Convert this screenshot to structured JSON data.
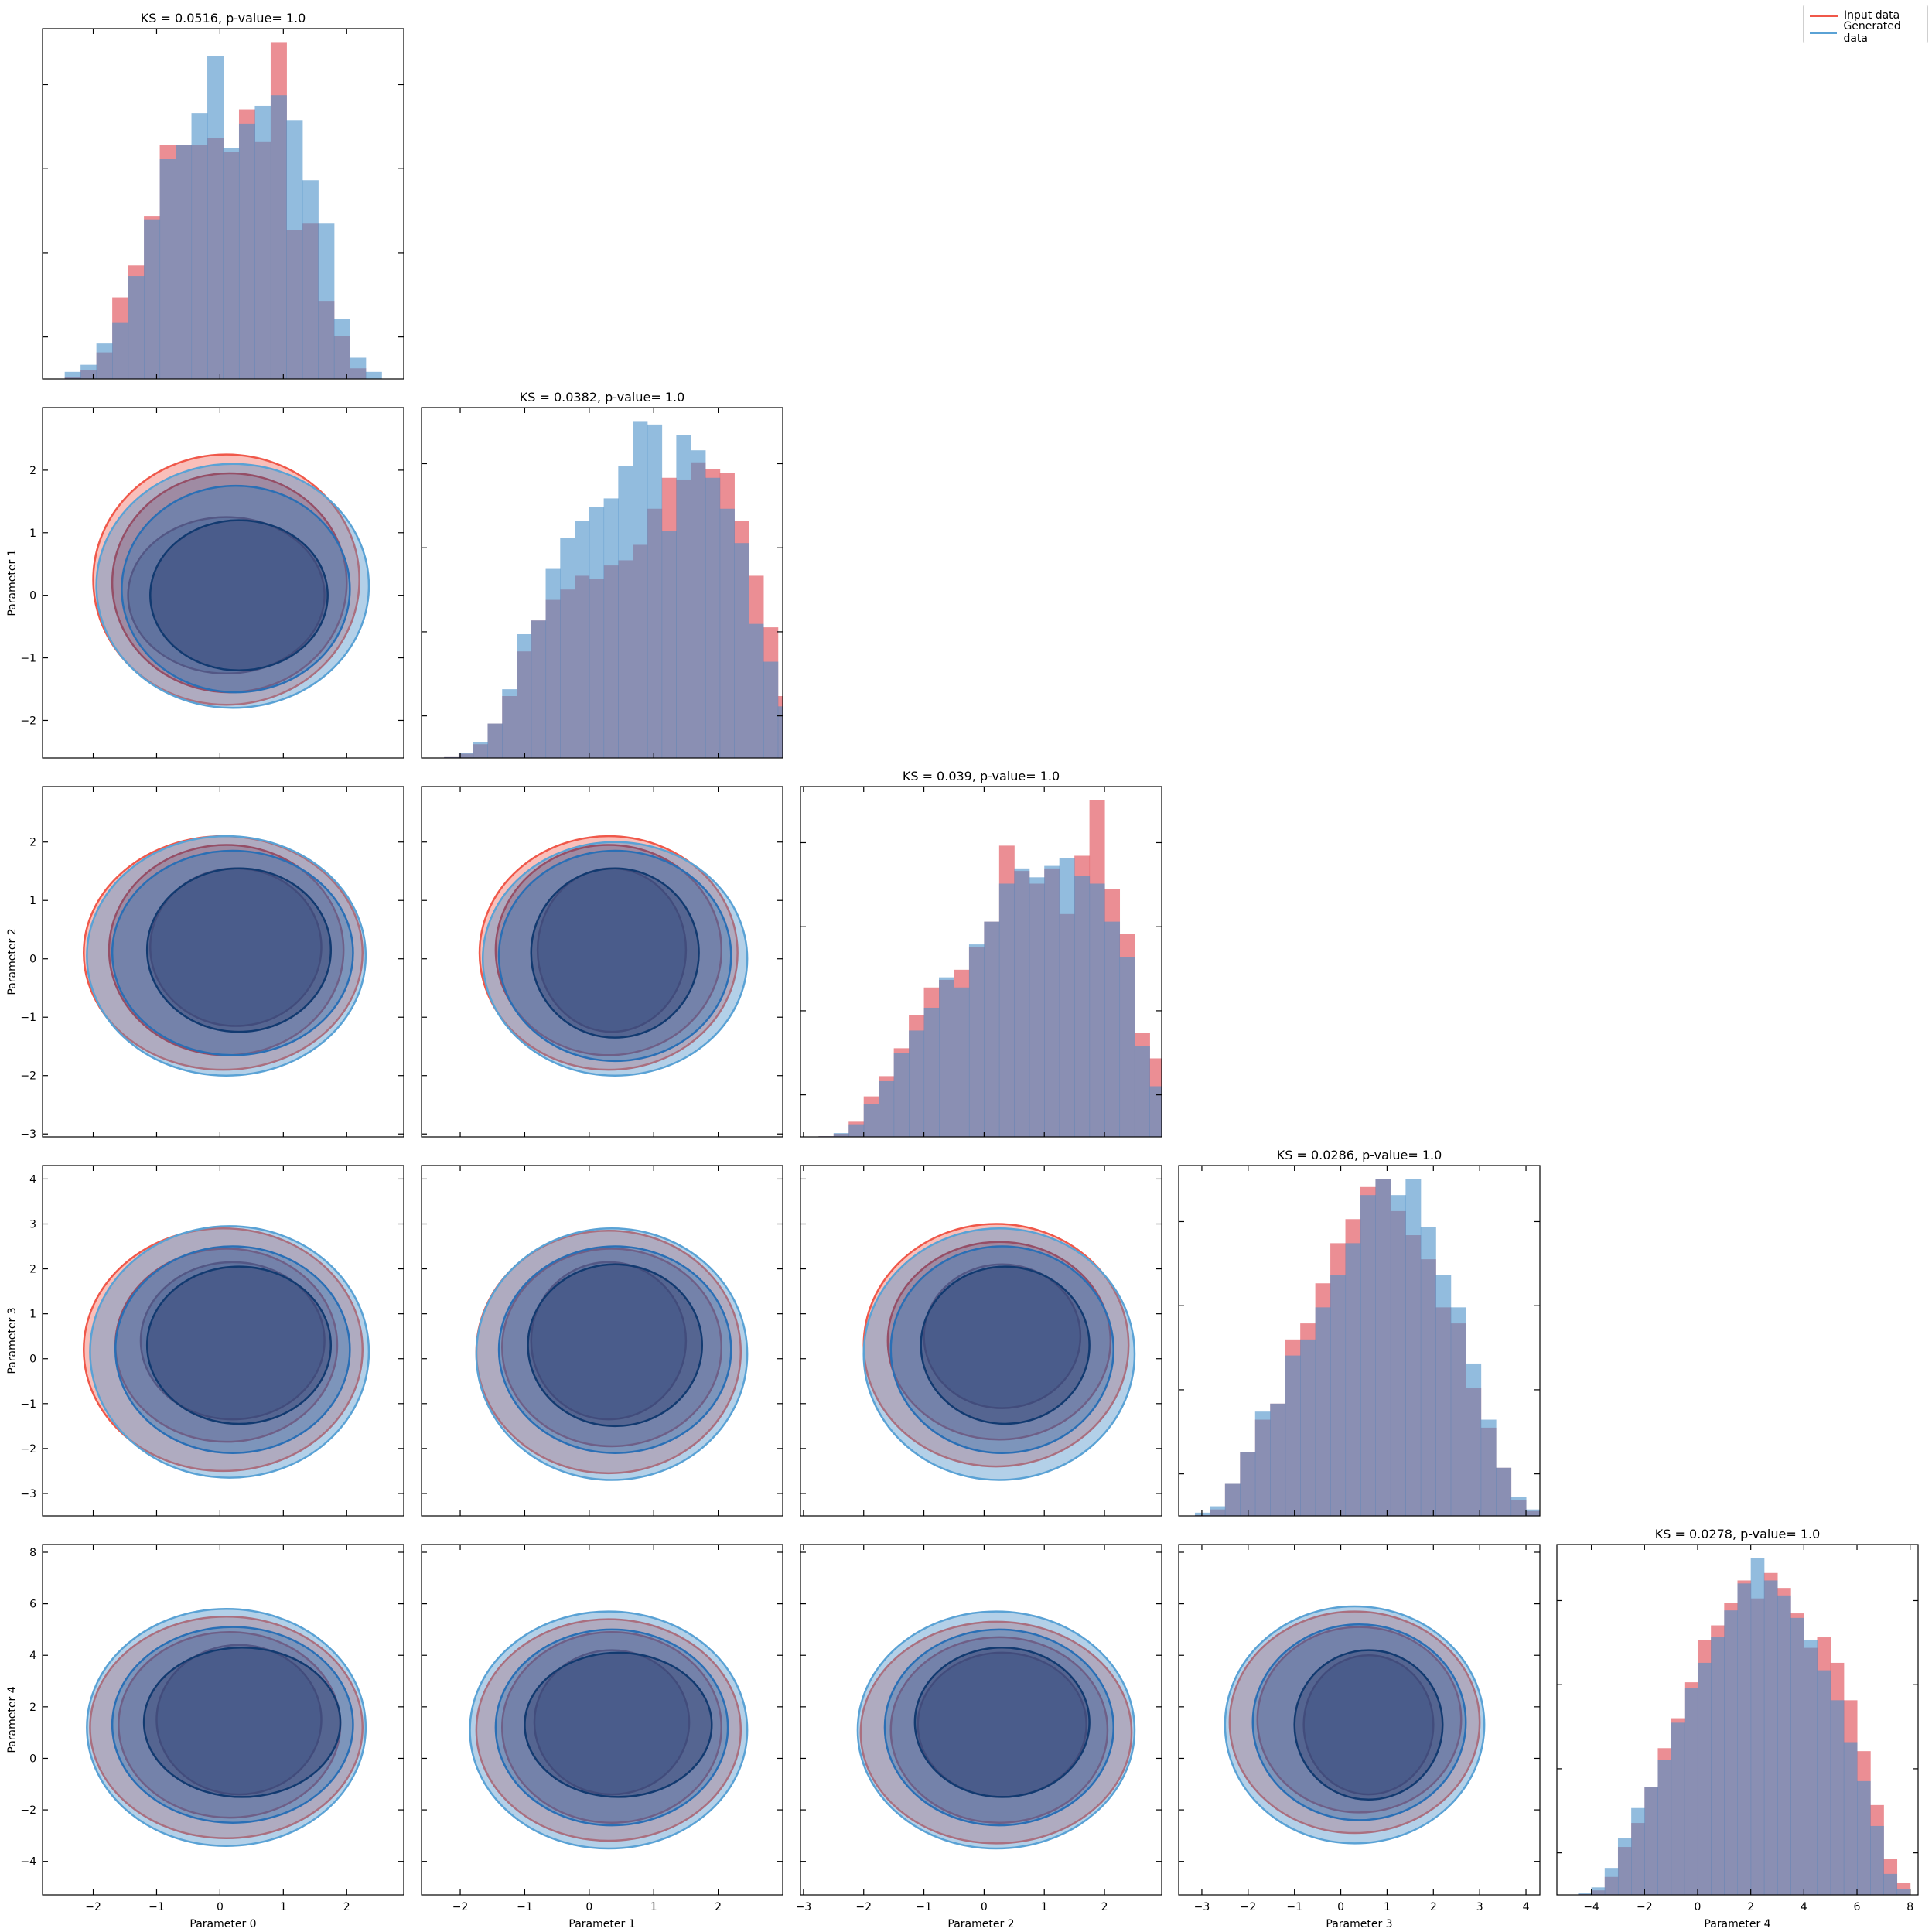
{
  "legend": {
    "entries": [
      {
        "label": "Input data",
        "color": "#f0584a"
      },
      {
        "label": "Generated data",
        "color": "#5aa2d5"
      }
    ]
  },
  "colors": {
    "input_fill": "#e0525a",
    "generated_fill": "#4a90c8",
    "overlap_fill": "#847f9e",
    "input_line_outer": "#f0584a",
    "input_line_mid": "#cc2020",
    "input_line_inner": "#7a0a1a",
    "generated_line_outer": "#5aa2d5",
    "generated_line_mid": "#2a6fb5",
    "generated_line_inner": "#123a70"
  },
  "chart_data": {
    "type": "corner",
    "parameters": [
      "Parameter 0",
      "Parameter 1",
      "Parameter 2",
      "Parameter 3",
      "Parameter 4"
    ],
    "ranges": [
      [
        -2.8,
        2.9
      ],
      [
        -2.6,
        3.0
      ],
      [
        -3.05,
        2.95
      ],
      [
        -3.5,
        4.3
      ],
      [
        -5.3,
        8.3
      ]
    ],
    "ticks": [
      [
        -2,
        -1,
        0,
        1,
        2
      ],
      [
        -2,
        -1,
        0,
        1,
        2
      ],
      [
        -3,
        -2,
        -1,
        0,
        1,
        2
      ],
      [
        -3,
        -2,
        -1,
        0,
        1,
        2,
        3,
        4
      ],
      [
        -4,
        -2,
        0,
        2,
        4,
        6,
        8
      ]
    ],
    "diagonal_titles": [
      "KS = 0.0516, p-value= 1.0",
      "KS = 0.0382, p-value= 1.0",
      "KS = 0.039, p-value= 1.0",
      "KS = 0.0286, p-value= 1.0",
      "KS = 0.0278, p-value= 1.0"
    ],
    "histograms": [
      {
        "start": -2.45,
        "width": 0.25,
        "input": [
          0.5,
          2.5,
          7.5,
          23,
          32,
          46,
          66,
          66,
          66,
          68,
          64,
          76,
          67,
          95,
          42,
          44,
          22,
          12,
          3
        ],
        "generated": [
          2,
          4,
          10,
          16,
          29,
          45,
          62,
          66,
          75,
          91,
          65,
          72,
          77,
          80,
          73,
          56,
          44,
          17,
          6,
          2
        ]
      },
      {
        "start": -2.25,
        "width": 0.225,
        "input": [
          0.5,
          2.5,
          8,
          20,
          36,
          62,
          80,
          92,
          98,
          106,
          104,
          112,
          115,
          124,
          145,
          163,
          162,
          172,
          168,
          166,
          138,
          106,
          76,
          36,
          12,
          3
        ],
        "generated": [
          0.5,
          3,
          9,
          20,
          40,
          72,
          80,
          110,
          128,
          138,
          146,
          151,
          170,
          196,
          194,
          132,
          188,
          179,
          163,
          145,
          125,
          78,
          56,
          30,
          11,
          3
        ]
      },
      {
        "start": -2.75,
        "width": 0.25,
        "input": [
          0.5,
          2.5,
          12,
          32,
          48,
          70,
          96,
          118,
          124,
          132,
          150,
          170,
          230,
          210,
          200,
          212,
          176,
          222,
          266,
          196,
          160,
          82,
          62,
          6
        ],
        "generated": [
          0.5,
          3,
          10,
          26,
          44,
          66,
          84,
          102,
          126,
          118,
          152,
          170,
          200,
          212,
          205,
          214,
          220,
          206,
          200,
          170,
          142,
          72,
          40,
          10,
          2
        ]
      },
      {
        "start": -3.15,
        "width": 0.325,
        "input": [
          0.5,
          4,
          20,
          40,
          60,
          70,
          110,
          120,
          145,
          170,
          185,
          205,
          210,
          190,
          175,
          160,
          130,
          120,
          80,
          55,
          30,
          10,
          3
        ],
        "generated": [
          2,
          6,
          20,
          40,
          65,
          70,
          100,
          110,
          130,
          150,
          170,
          200,
          210,
          200,
          210,
          180,
          150,
          130,
          95,
          60,
          30,
          12,
          4
        ]
      },
      {
        "start": -4.5,
        "width": 0.5,
        "input": [
          0.5,
          3,
          12,
          32,
          48,
          72,
          98,
          118,
          142,
          170,
          180,
          195,
          210,
          198,
          215,
          205,
          188,
          165,
          172,
          155,
          130,
          96,
          60,
          24,
          8
        ],
        "generated": [
          1,
          5,
          18,
          38,
          58,
          72,
          90,
          115,
          138,
          155,
          172,
          190,
          208,
          225,
          210,
          200,
          185,
          170,
          150,
          130,
          102,
          76,
          46,
          14,
          4
        ]
      }
    ],
    "contour_levels": [
      {
        "name": "outer",
        "q": 0.95
      },
      {
        "name": "mid",
        "q": 0.85
      },
      {
        "name": "inner",
        "q": 0.6
      }
    ],
    "pair_contours": {
      "1-0": {
        "input": [
          {
            "cx": 0.1,
            "cy": 0.25,
            "rx": 2.1,
            "ry": 2.0
          },
          {
            "cx": 0.15,
            "cy": 0.2,
            "rx": 1.85,
            "ry": 1.75
          },
          {
            "cx": 0.1,
            "cy": 0.0,
            "rx": 1.55,
            "ry": 1.25
          }
        ],
        "generated": [
          {
            "cx": 0.2,
            "cy": 0.15,
            "rx": 2.15,
            "ry": 1.95
          },
          {
            "cx": 0.25,
            "cy": 0.1,
            "rx": 1.8,
            "ry": 1.65
          },
          {
            "cx": 0.3,
            "cy": 0.0,
            "rx": 1.4,
            "ry": 1.2
          }
        ]
      },
      "2-0": {
        "input": [
          {
            "cx": 0.05,
            "cy": 0.1,
            "rx": 2.2,
            "ry": 2.0
          },
          {
            "cx": 0.1,
            "cy": 0.15,
            "rx": 1.85,
            "ry": 1.8
          },
          {
            "cx": 0.25,
            "cy": 0.2,
            "rx": 1.35,
            "ry": 1.35
          }
        ],
        "generated": [
          {
            "cx": 0.1,
            "cy": 0.05,
            "rx": 2.2,
            "ry": 2.05
          },
          {
            "cx": 0.2,
            "cy": 0.1,
            "rx": 1.9,
            "ry": 1.75
          },
          {
            "cx": 0.3,
            "cy": 0.15,
            "rx": 1.45,
            "ry": 1.4
          }
        ]
      },
      "2-1": {
        "input": [
          {
            "cx": 0.3,
            "cy": 0.1,
            "rx": 2.0,
            "ry": 2.0
          },
          {
            "cx": 0.3,
            "cy": 0.15,
            "rx": 1.75,
            "ry": 1.8
          },
          {
            "cx": 0.35,
            "cy": 0.15,
            "rx": 1.15,
            "ry": 1.4
          }
        ],
        "generated": [
          {
            "cx": 0.4,
            "cy": 0.0,
            "rx": 2.05,
            "ry": 2.0
          },
          {
            "cx": 0.4,
            "cy": 0.05,
            "rx": 1.8,
            "ry": 1.8
          },
          {
            "cx": 0.4,
            "cy": 0.1,
            "rx": 1.3,
            "ry": 1.45
          }
        ]
      },
      "3-0": {
        "input": [
          {
            "cx": 0.05,
            "cy": 0.2,
            "rx": 2.2,
            "ry": 2.7
          },
          {
            "cx": 0.1,
            "cy": 0.3,
            "rx": 1.75,
            "ry": 2.15
          },
          {
            "cx": 0.2,
            "cy": 0.4,
            "rx": 1.45,
            "ry": 1.75
          }
        ],
        "generated": [
          {
            "cx": 0.15,
            "cy": 0.15,
            "rx": 2.2,
            "ry": 2.8
          },
          {
            "cx": 0.2,
            "cy": 0.2,
            "rx": 1.85,
            "ry": 2.3
          },
          {
            "cx": 0.3,
            "cy": 0.3,
            "rx": 1.45,
            "ry": 1.75
          }
        ]
      },
      "3-1": {
        "input": [
          {
            "cx": 0.3,
            "cy": 0.15,
            "rx": 2.05,
            "ry": 2.7
          },
          {
            "cx": 0.35,
            "cy": 0.25,
            "rx": 1.7,
            "ry": 2.2
          },
          {
            "cx": 0.3,
            "cy": 0.4,
            "rx": 1.2,
            "ry": 1.75
          }
        ],
        "generated": [
          {
            "cx": 0.35,
            "cy": 0.1,
            "rx": 2.1,
            "ry": 2.8
          },
          {
            "cx": 0.4,
            "cy": 0.2,
            "rx": 1.8,
            "ry": 2.3
          },
          {
            "cx": 0.4,
            "cy": 0.3,
            "rx": 1.35,
            "ry": 1.8
          }
        ]
      },
      "3-2": {
        "input": [
          {
            "cx": 0.2,
            "cy": 0.3,
            "rx": 2.2,
            "ry": 2.7
          },
          {
            "cx": 0.25,
            "cy": 0.4,
            "rx": 1.85,
            "ry": 2.2
          },
          {
            "cx": 0.3,
            "cy": 0.5,
            "rx": 1.3,
            "ry": 1.6
          }
        ],
        "generated": [
          {
            "cx": 0.25,
            "cy": 0.1,
            "rx": 2.25,
            "ry": 2.8
          },
          {
            "cx": 0.3,
            "cy": 0.2,
            "rx": 1.85,
            "ry": 2.3
          },
          {
            "cx": 0.35,
            "cy": 0.3,
            "rx": 1.4,
            "ry": 1.75
          }
        ]
      },
      "4-0": {
        "input": [
          {
            "cx": 0.1,
            "cy": 1.2,
            "rx": 2.15,
            "ry": 4.3
          },
          {
            "cx": 0.15,
            "cy": 1.3,
            "rx": 1.75,
            "ry": 3.6
          },
          {
            "cx": 0.3,
            "cy": 1.5,
            "rx": 1.3,
            "ry": 2.9
          }
        ],
        "generated": [
          {
            "cx": 0.1,
            "cy": 1.2,
            "rx": 2.2,
            "ry": 4.6
          },
          {
            "cx": 0.2,
            "cy": 1.3,
            "rx": 1.9,
            "ry": 3.8
          },
          {
            "cx": 0.35,
            "cy": 1.4,
            "rx": 1.55,
            "ry": 2.9
          }
        ]
      },
      "4-1": {
        "input": [
          {
            "cx": 0.3,
            "cy": 1.1,
            "rx": 2.05,
            "ry": 4.3
          },
          {
            "cx": 0.35,
            "cy": 1.2,
            "rx": 1.7,
            "ry": 3.7
          },
          {
            "cx": 0.35,
            "cy": 1.4,
            "rx": 1.2,
            "ry": 2.8
          }
        ],
        "generated": [
          {
            "cx": 0.3,
            "cy": 1.1,
            "rx": 2.15,
            "ry": 4.6
          },
          {
            "cx": 0.35,
            "cy": 1.2,
            "rx": 1.8,
            "ry": 3.8
          },
          {
            "cx": 0.45,
            "cy": 1.3,
            "rx": 1.45,
            "ry": 2.8
          }
        ]
      },
      "4-2": {
        "input": [
          {
            "cx": 0.2,
            "cy": 1.0,
            "rx": 2.25,
            "ry": 4.3
          },
          {
            "cx": 0.25,
            "cy": 1.1,
            "rx": 1.8,
            "ry": 3.6
          },
          {
            "cx": 0.3,
            "cy": 1.3,
            "rx": 1.4,
            "ry": 2.8
          }
        ],
        "generated": [
          {
            "cx": 0.2,
            "cy": 1.1,
            "rx": 2.3,
            "ry": 4.6
          },
          {
            "cx": 0.25,
            "cy": 1.2,
            "rx": 1.9,
            "ry": 3.8
          },
          {
            "cx": 0.3,
            "cy": 1.4,
            "rx": 1.45,
            "ry": 2.9
          }
        ]
      },
      "4-3": {
        "input": [
          {
            "cx": 0.3,
            "cy": 1.4,
            "rx": 2.7,
            "ry": 4.3
          },
          {
            "cx": 0.4,
            "cy": 1.5,
            "rx": 2.2,
            "ry": 3.6
          },
          {
            "cx": 0.6,
            "cy": 1.3,
            "rx": 1.4,
            "ry": 2.7
          }
        ],
        "generated": [
          {
            "cx": 0.3,
            "cy": 1.3,
            "rx": 2.8,
            "ry": 4.6
          },
          {
            "cx": 0.4,
            "cy": 1.4,
            "rx": 2.3,
            "ry": 3.8
          },
          {
            "cx": 0.6,
            "cy": 1.3,
            "rx": 1.6,
            "ry": 2.9
          }
        ]
      }
    }
  }
}
